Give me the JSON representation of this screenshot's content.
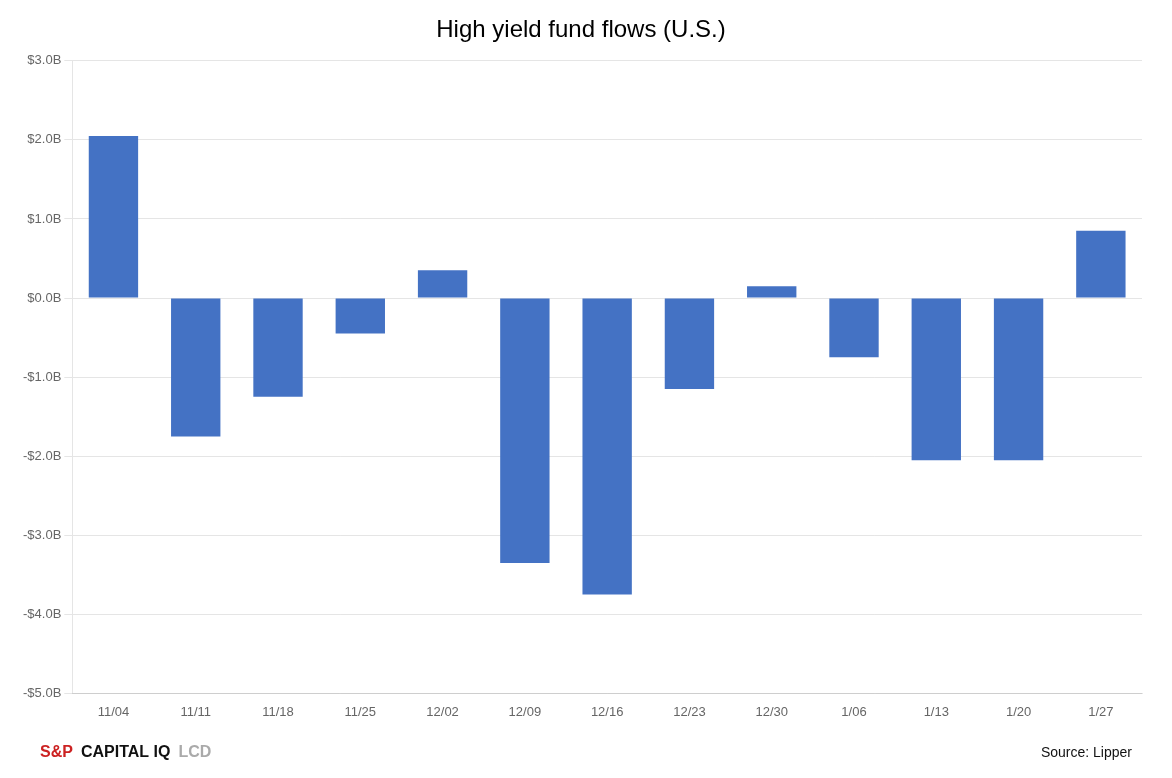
{
  "chart_data": {
    "type": "bar",
    "title": "High yield fund flows (U.S.)",
    "categories": [
      "11/04",
      "11/11",
      "11/18",
      "11/25",
      "12/02",
      "12/09",
      "12/16",
      "12/23",
      "12/30",
      "1/06",
      "1/13",
      "1/20",
      "1/27"
    ],
    "values": [
      2.05,
      -1.75,
      -1.25,
      -0.45,
      0.35,
      -3.35,
      -3.75,
      -1.15,
      0.15,
      -0.75,
      -2.05,
      -2.05,
      0.85
    ],
    "color": "#4472C4",
    "ylim": [
      -5.0,
      3.0
    ],
    "yticks": [
      {
        "value": -5.0,
        "label": "-$5.0B"
      },
      {
        "value": -4.0,
        "label": "-$4.0B"
      },
      {
        "value": -3.0,
        "label": "-$3.0B"
      },
      {
        "value": -2.0,
        "label": "-$2.0B"
      },
      {
        "value": -1.0,
        "label": "-$1.0B"
      },
      {
        "value": 0.0,
        "label": "$0.0B"
      },
      {
        "value": 1.0,
        "label": "$1.0B"
      },
      {
        "value": 2.0,
        "label": "$2.0B"
      },
      {
        "value": 3.0,
        "label": "$3.0B"
      }
    ],
    "grid": true,
    "annotations": [
      {
        "text": "S&P",
        "color": "#cc2222"
      },
      {
        "text": "CAPITAL IQ",
        "color": "#111111"
      },
      {
        "text": "LCD",
        "color": "#aaaaaa"
      },
      {
        "text": "Source: Lipper",
        "color": "#111111"
      }
    ]
  }
}
